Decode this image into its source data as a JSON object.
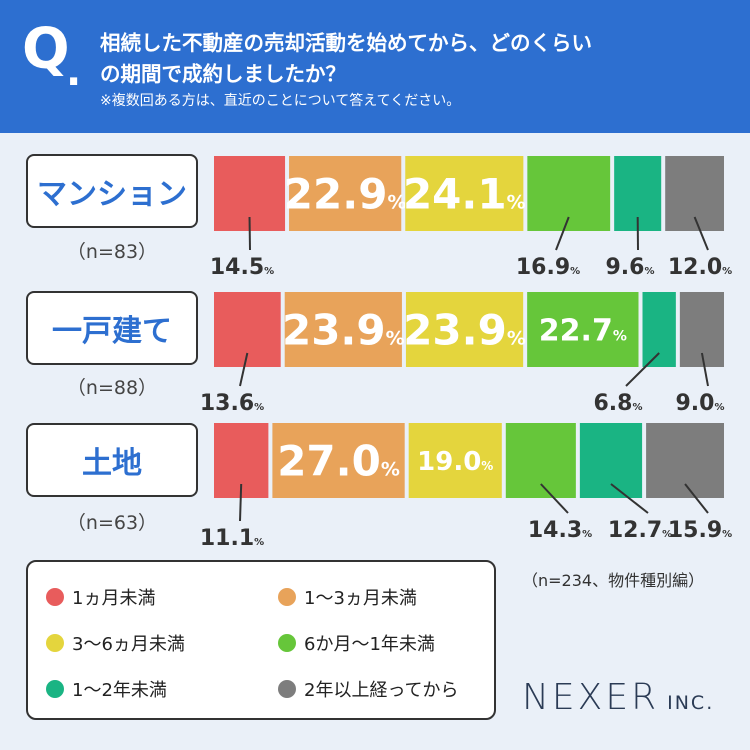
{
  "header": {
    "q": "Q",
    "dot": ".",
    "line1": "相続した不動産の売却活動を始めてから、どのくらい",
    "line2": "の期間で成約しましたか？",
    "note": "※複数回ある方は、直近のことについて答えてください。"
  },
  "chart_data": {
    "type": "bar",
    "stacked": true,
    "orientation": "horizontal",
    "unit": "%",
    "categories": [
      "マンション",
      "一戸建て",
      "土地"
    ],
    "sample_sizes": [
      "（n=83）",
      "（n=88）",
      "（n=63）"
    ],
    "series": [
      {
        "name": "1ヵ月未満",
        "color": "#e85c5c",
        "values": [
          14.5,
          13.6,
          11.1
        ]
      },
      {
        "name": "1〜3ヵ月未満",
        "color": "#e8a35a",
        "values": [
          22.9,
          23.9,
          27.0
        ]
      },
      {
        "name": "3〜6ヵ月未満",
        "color": "#e4d53d",
        "values": [
          24.1,
          23.9,
          19.0
        ]
      },
      {
        "name": "6か月〜1年未満",
        "color": "#66c63a",
        "values": [
          16.9,
          22.7,
          14.3
        ]
      },
      {
        "name": "1〜2年未満",
        "color": "#1ab483",
        "values": [
          9.6,
          6.8,
          12.7
        ]
      },
      {
        "name": "2年以上経ってから",
        "color": "#7d7d7d",
        "values": [
          12.0,
          9.0,
          15.9
        ]
      }
    ],
    "legend_position": "bottom-left"
  },
  "legend_dot_colors": [
    "#e85c5c",
    "#e8a35a",
    "#e4d53d",
    "#66c63a",
    "#1ab483",
    "#7d7d7d"
  ],
  "footer": {
    "note": "（n=234、物件種別編）",
    "logo_main": "NEXER",
    "logo_sub": "INC."
  }
}
